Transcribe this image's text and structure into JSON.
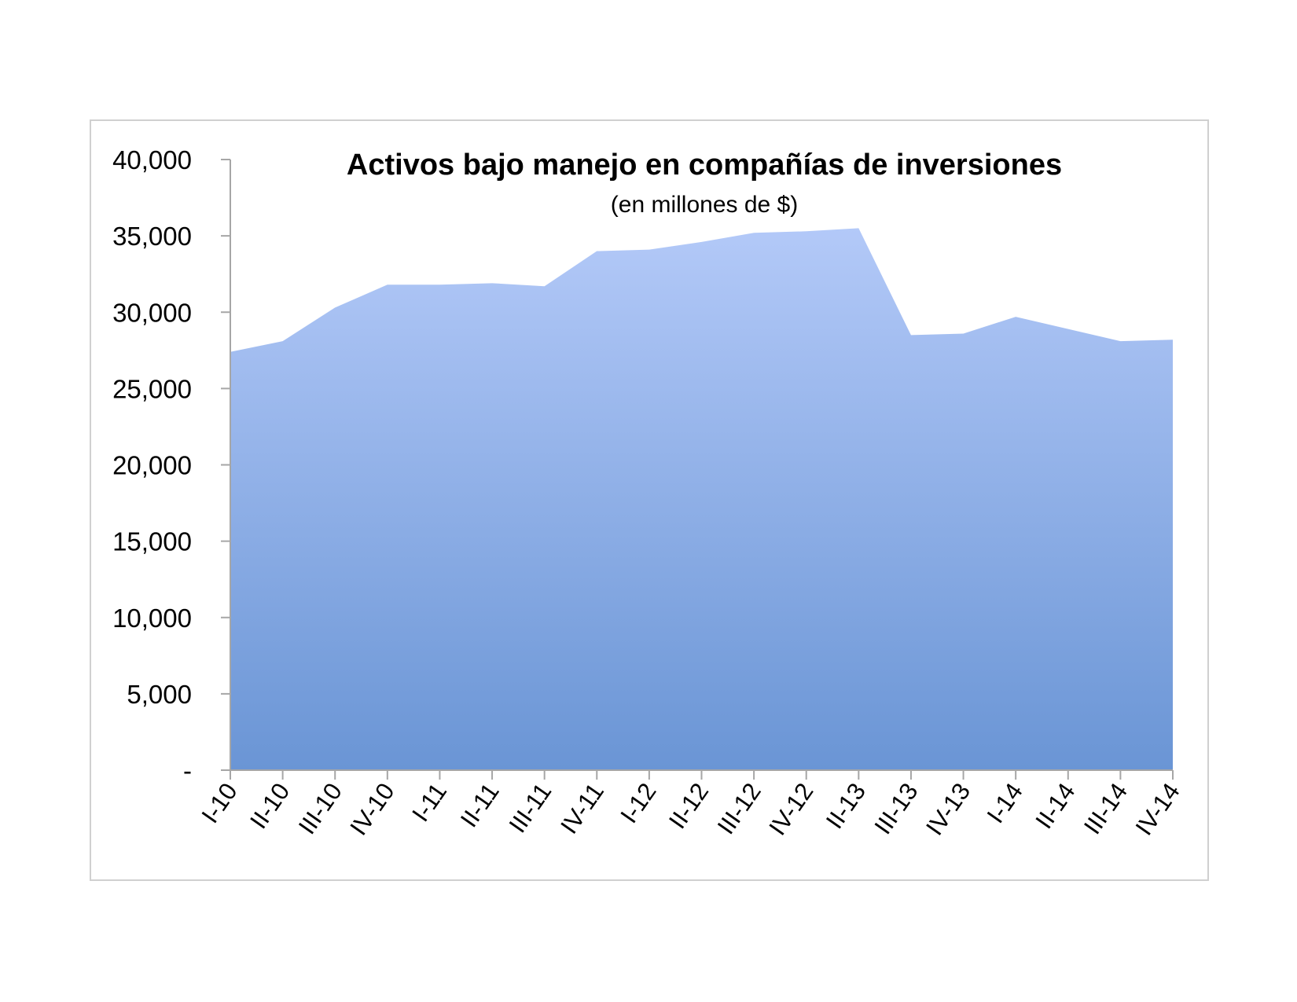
{
  "chart_data": {
    "type": "area",
    "title": "Activos bajo manejo en compañías de inversiones",
    "subtitle": "(en millones de $)",
    "xlabel": "",
    "ylabel": "",
    "categories": [
      "I-10",
      "II-10",
      "III-10",
      "IV-10",
      "I-11",
      "II-11",
      "III-11",
      "IV-11",
      "I-12",
      "II-12",
      "III-12",
      "IV-12",
      "II-13",
      "III-13",
      "IV-13",
      "I-14",
      "II-14",
      "III-14",
      "IV-14"
    ],
    "series": [
      {
        "values": [
          27400,
          28100,
          30300,
          31800,
          31800,
          31900,
          31700,
          34000,
          34100,
          34600,
          35200,
          35300,
          35500,
          28500,
          28600,
          29700,
          28900,
          28100,
          28200
        ]
      }
    ],
    "ylim": [
      0,
      40000
    ],
    "y_ticks": [
      0,
      5000,
      10000,
      15000,
      20000,
      25000,
      30000,
      35000,
      40000
    ],
    "y_tick_labels": [
      "-",
      "5,000",
      "10,000",
      "15,000",
      "20,000",
      "25,000",
      "30,000",
      "35,000",
      "40,000"
    ],
    "grid": false,
    "legend": "none",
    "fill_color_top": "#b3c9f8",
    "fill_color_bottom": "#6a95d5",
    "axis_color": "#a6a6a6"
  }
}
